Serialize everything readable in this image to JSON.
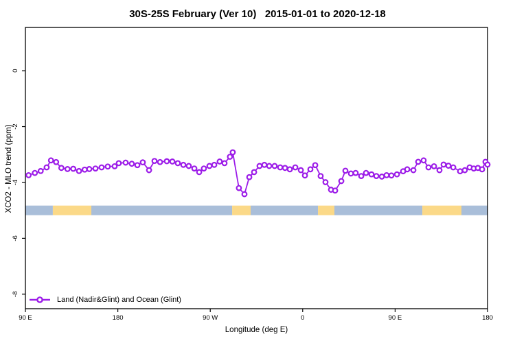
{
  "chart_data": {
    "type": "line",
    "title": "30S-25S February (Ver 10)   2015-01-01 to 2020-12-18",
    "xlabel": "Longitude (deg E)",
    "ylabel": "XCO2 - MLO trend (ppm)",
    "xlim": [
      90,
      540
    ],
    "ylim": [
      -8.52,
      1.55
    ],
    "x_ticks": [
      {
        "lon": 90,
        "label": "90 E"
      },
      {
        "lon": 180,
        "label": "180"
      },
      {
        "lon": 270,
        "label": "90 W"
      },
      {
        "lon": 360,
        "label": "0"
      },
      {
        "lon": 450,
        "label": "90 E"
      },
      {
        "lon": 540,
        "label": "180"
      }
    ],
    "y_ticks": [
      {
        "value": 0,
        "label": "0"
      },
      {
        "value": -2,
        "label": "-2"
      },
      {
        "value": -4,
        "label": "-4"
      },
      {
        "value": -6,
        "label": "-6"
      },
      {
        "value": -8,
        "label": "-8"
      }
    ],
    "grid": "off",
    "legend_position": "bottom-left-inside",
    "series": [
      {
        "name": "Land (Nadir&Glint) and Ocean (Glint)",
        "color": "#9C1CE8",
        "marker": "open-circle",
        "lon": [
          93.1,
          99.2,
          104.9,
          110.7,
          114.9,
          119.9,
          125.0,
          131.0,
          136.6,
          142.2,
          147.7,
          152.2,
          158.2,
          164.2,
          170.2,
          176.9,
          180.9,
          187.6,
          193.6,
          199.0,
          204.3,
          210.4,
          215.7,
          221.1,
          227.7,
          233.1,
          238.4,
          243.8,
          249.1,
          254.5,
          259.2,
          263.8,
          269.2,
          273.9,
          279.2,
          283.9,
          289.2,
          291.9,
          297.9,
          303.3,
          308.0,
          312.7,
          318.0,
          322.7,
          327.4,
          332.7,
          338.1,
          342.8,
          347.5,
          352.8,
          358.2,
          362.2,
          367.5,
          372.2,
          377.5,
          382.2,
          387.6,
          391.6,
          397.6,
          401.6,
          407.0,
          411.6,
          417.0,
          421.7,
          427.0,
          431.7,
          437.1,
          441.7,
          446.4,
          451.8,
          457.8,
          461.8,
          467.8,
          472.5,
          477.8,
          482.5,
          487.9,
          493.2,
          497.2,
          501.9,
          506.6,
          513.3,
          517.9,
          522.6,
          526.6,
          530.6,
          534.7,
          538.0,
          540.0
        ],
        "ppm": [
          -3.74,
          -3.66,
          -3.59,
          -3.46,
          -3.21,
          -3.27,
          -3.48,
          -3.52,
          -3.51,
          -3.59,
          -3.54,
          -3.52,
          -3.5,
          -3.46,
          -3.43,
          -3.42,
          -3.31,
          -3.29,
          -3.33,
          -3.38,
          -3.28,
          -3.56,
          -3.23,
          -3.27,
          -3.24,
          -3.25,
          -3.31,
          -3.37,
          -3.41,
          -3.5,
          -3.63,
          -3.5,
          -3.41,
          -3.37,
          -3.25,
          -3.31,
          -3.08,
          -2.92,
          -4.2,
          -4.42,
          -3.81,
          -3.63,
          -3.41,
          -3.37,
          -3.41,
          -3.41,
          -3.46,
          -3.48,
          -3.53,
          -3.46,
          -3.56,
          -3.75,
          -3.53,
          -3.38,
          -3.77,
          -3.99,
          -4.26,
          -4.29,
          -3.95,
          -3.58,
          -3.68,
          -3.66,
          -3.77,
          -3.66,
          -3.71,
          -3.77,
          -3.79,
          -3.74,
          -3.75,
          -3.71,
          -3.6,
          -3.53,
          -3.56,
          -3.26,
          -3.21,
          -3.46,
          -3.42,
          -3.56,
          -3.36,
          -3.4,
          -3.46,
          -3.6,
          -3.56,
          -3.46,
          -3.5,
          -3.48,
          -3.53,
          -3.26,
          -3.36
        ]
      }
    ],
    "band": {
      "center_ppm": -5.0,
      "thickness_px": 14,
      "colors": {
        "blue": "#A9BED9",
        "yellow": "#FBD988"
      },
      "segments": [
        {
          "from": 90,
          "to": 116.7,
          "color": "blue"
        },
        {
          "from": 116.7,
          "to": 154.2,
          "color": "yellow"
        },
        {
          "from": 154.2,
          "to": 291.3,
          "color": "blue"
        },
        {
          "from": 291.3,
          "to": 309.3,
          "color": "yellow"
        },
        {
          "from": 309.3,
          "to": 374.9,
          "color": "blue"
        },
        {
          "from": 374.9,
          "to": 390.9,
          "color": "yellow"
        },
        {
          "from": 390.9,
          "to": 476.5,
          "color": "blue"
        },
        {
          "from": 476.5,
          "to": 514.6,
          "color": "yellow"
        },
        {
          "from": 514.6,
          "to": 540,
          "color": "blue"
        }
      ]
    },
    "legend": {
      "label": "Land (Nadir&Glint) and Ocean (Glint)"
    }
  }
}
